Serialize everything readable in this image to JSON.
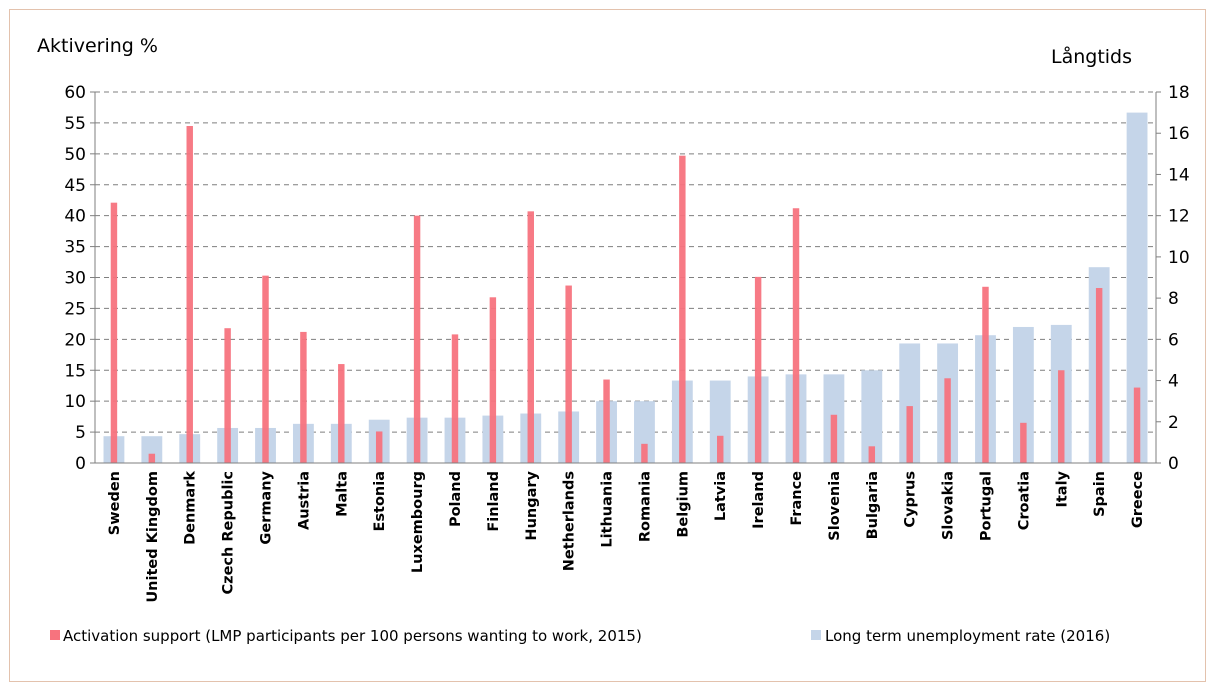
{
  "chart_data": {
    "type": "bar",
    "y_left_title": "Aktivering %",
    "y_right_title": "Långtids",
    "y_left_lim": [
      0,
      60
    ],
    "y_left_ticks": [
      0,
      5,
      10,
      15,
      20,
      25,
      30,
      35,
      40,
      45,
      50,
      55,
      60
    ],
    "y_right_lim": [
      0,
      18
    ],
    "y_right_ticks": [
      0,
      2,
      4,
      6,
      8,
      10,
      12,
      14,
      16,
      18
    ],
    "grid": "dashed horizontal",
    "legend_position": "bottom",
    "categories": [
      "Sweden",
      "United Kingdom",
      "Denmark",
      "Czech Republic",
      "Germany",
      "Austria",
      "Malta",
      "Estonia",
      "Luxembourg",
      "Poland",
      "Finland",
      "Hungary",
      "Netherlands",
      "Lithuania",
      "Romania",
      "Belgium",
      "Latvia",
      "Ireland",
      "France",
      "Slovenia",
      "Bulgaria",
      "Cyprus",
      "Slovakia",
      "Portugal",
      "Croatia",
      "Italy",
      "Spain",
      "Greece"
    ],
    "series": [
      {
        "name": "Activation support (LMP participants per 100 persons wanting to work, 2015)",
        "axis": "left",
        "color": "#f7737e",
        "values": [
          42.1,
          1.5,
          54.5,
          21.8,
          30.3,
          21.2,
          16.0,
          5.1,
          40.0,
          20.8,
          26.8,
          40.7,
          28.7,
          13.5,
          3.1,
          49.7,
          4.4,
          30.1,
          41.2,
          7.8,
          2.7,
          9.2,
          13.7,
          28.5,
          6.5,
          15.0,
          28.3,
          12.2
        ]
      },
      {
        "name": "Long term unemployment rate (2016)",
        "axis": "right",
        "color": "#c5d5e9",
        "values": [
          1.3,
          1.3,
          1.4,
          1.7,
          1.7,
          1.9,
          1.9,
          2.1,
          2.2,
          2.2,
          2.3,
          2.4,
          2.5,
          3.0,
          3.0,
          4.0,
          4.0,
          4.2,
          4.3,
          4.3,
          4.5,
          5.8,
          5.8,
          6.2,
          6.6,
          6.7,
          9.5,
          17.0
        ]
      }
    ]
  }
}
